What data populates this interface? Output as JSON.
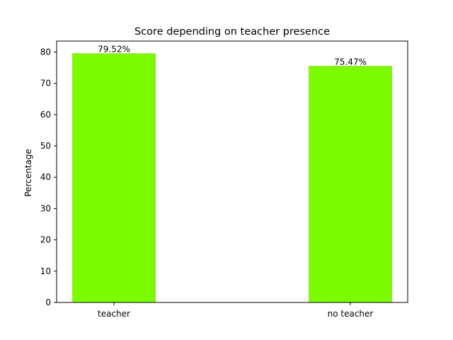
{
  "chart_data": {
    "type": "bar",
    "title": "Score depending on teacher presence",
    "xlabel": "",
    "ylabel": "Percentage",
    "categories": [
      "teacher",
      "no teacher"
    ],
    "values": [
      79.52,
      75.47
    ],
    "value_labels": [
      "79.52%",
      "75.47%"
    ],
    "ylim": [
      0,
      83.5
    ],
    "yticks": [
      0,
      10,
      20,
      30,
      40,
      50,
      60,
      70,
      80
    ],
    "bar_color": "#7cfc00",
    "bar_edge_color": "#99cc33",
    "grid": false,
    "legend": "none"
  }
}
